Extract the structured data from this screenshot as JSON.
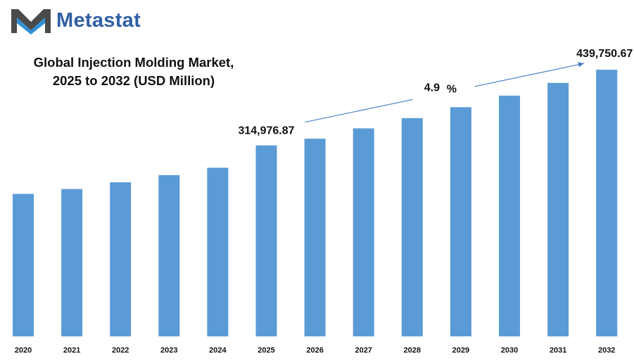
{
  "brand": {
    "name": "Metastat",
    "color": "#2f5fa5"
  },
  "chart_data": {
    "type": "bar",
    "title_lines": [
      "Global Injection Molding Market,",
      "2025 to 2032 (USD Million)"
    ],
    "categories": [
      "2020",
      "2021",
      "2022",
      "2023",
      "2024",
      "2025",
      "2026",
      "2027",
      "2028",
      "2029",
      "2030",
      "2031",
      "2032"
    ],
    "values": [
      235000,
      243000,
      254000,
      266000,
      278000,
      314976.87,
      326000,
      343000,
      360000,
      378000,
      397000,
      418000,
      439750.67
    ],
    "ylim": [
      0,
      470000
    ],
    "bar_color": "#5b9bd5",
    "grid": false,
    "data_labels": [
      {
        "category": "2025",
        "text": "314,976.87"
      },
      {
        "category": "2032",
        "text": "439,750.67"
      }
    ],
    "annotation": {
      "cagr_value": "4.9",
      "cagr_unit": "%",
      "arrow_color": "#4a7fc9"
    }
  }
}
